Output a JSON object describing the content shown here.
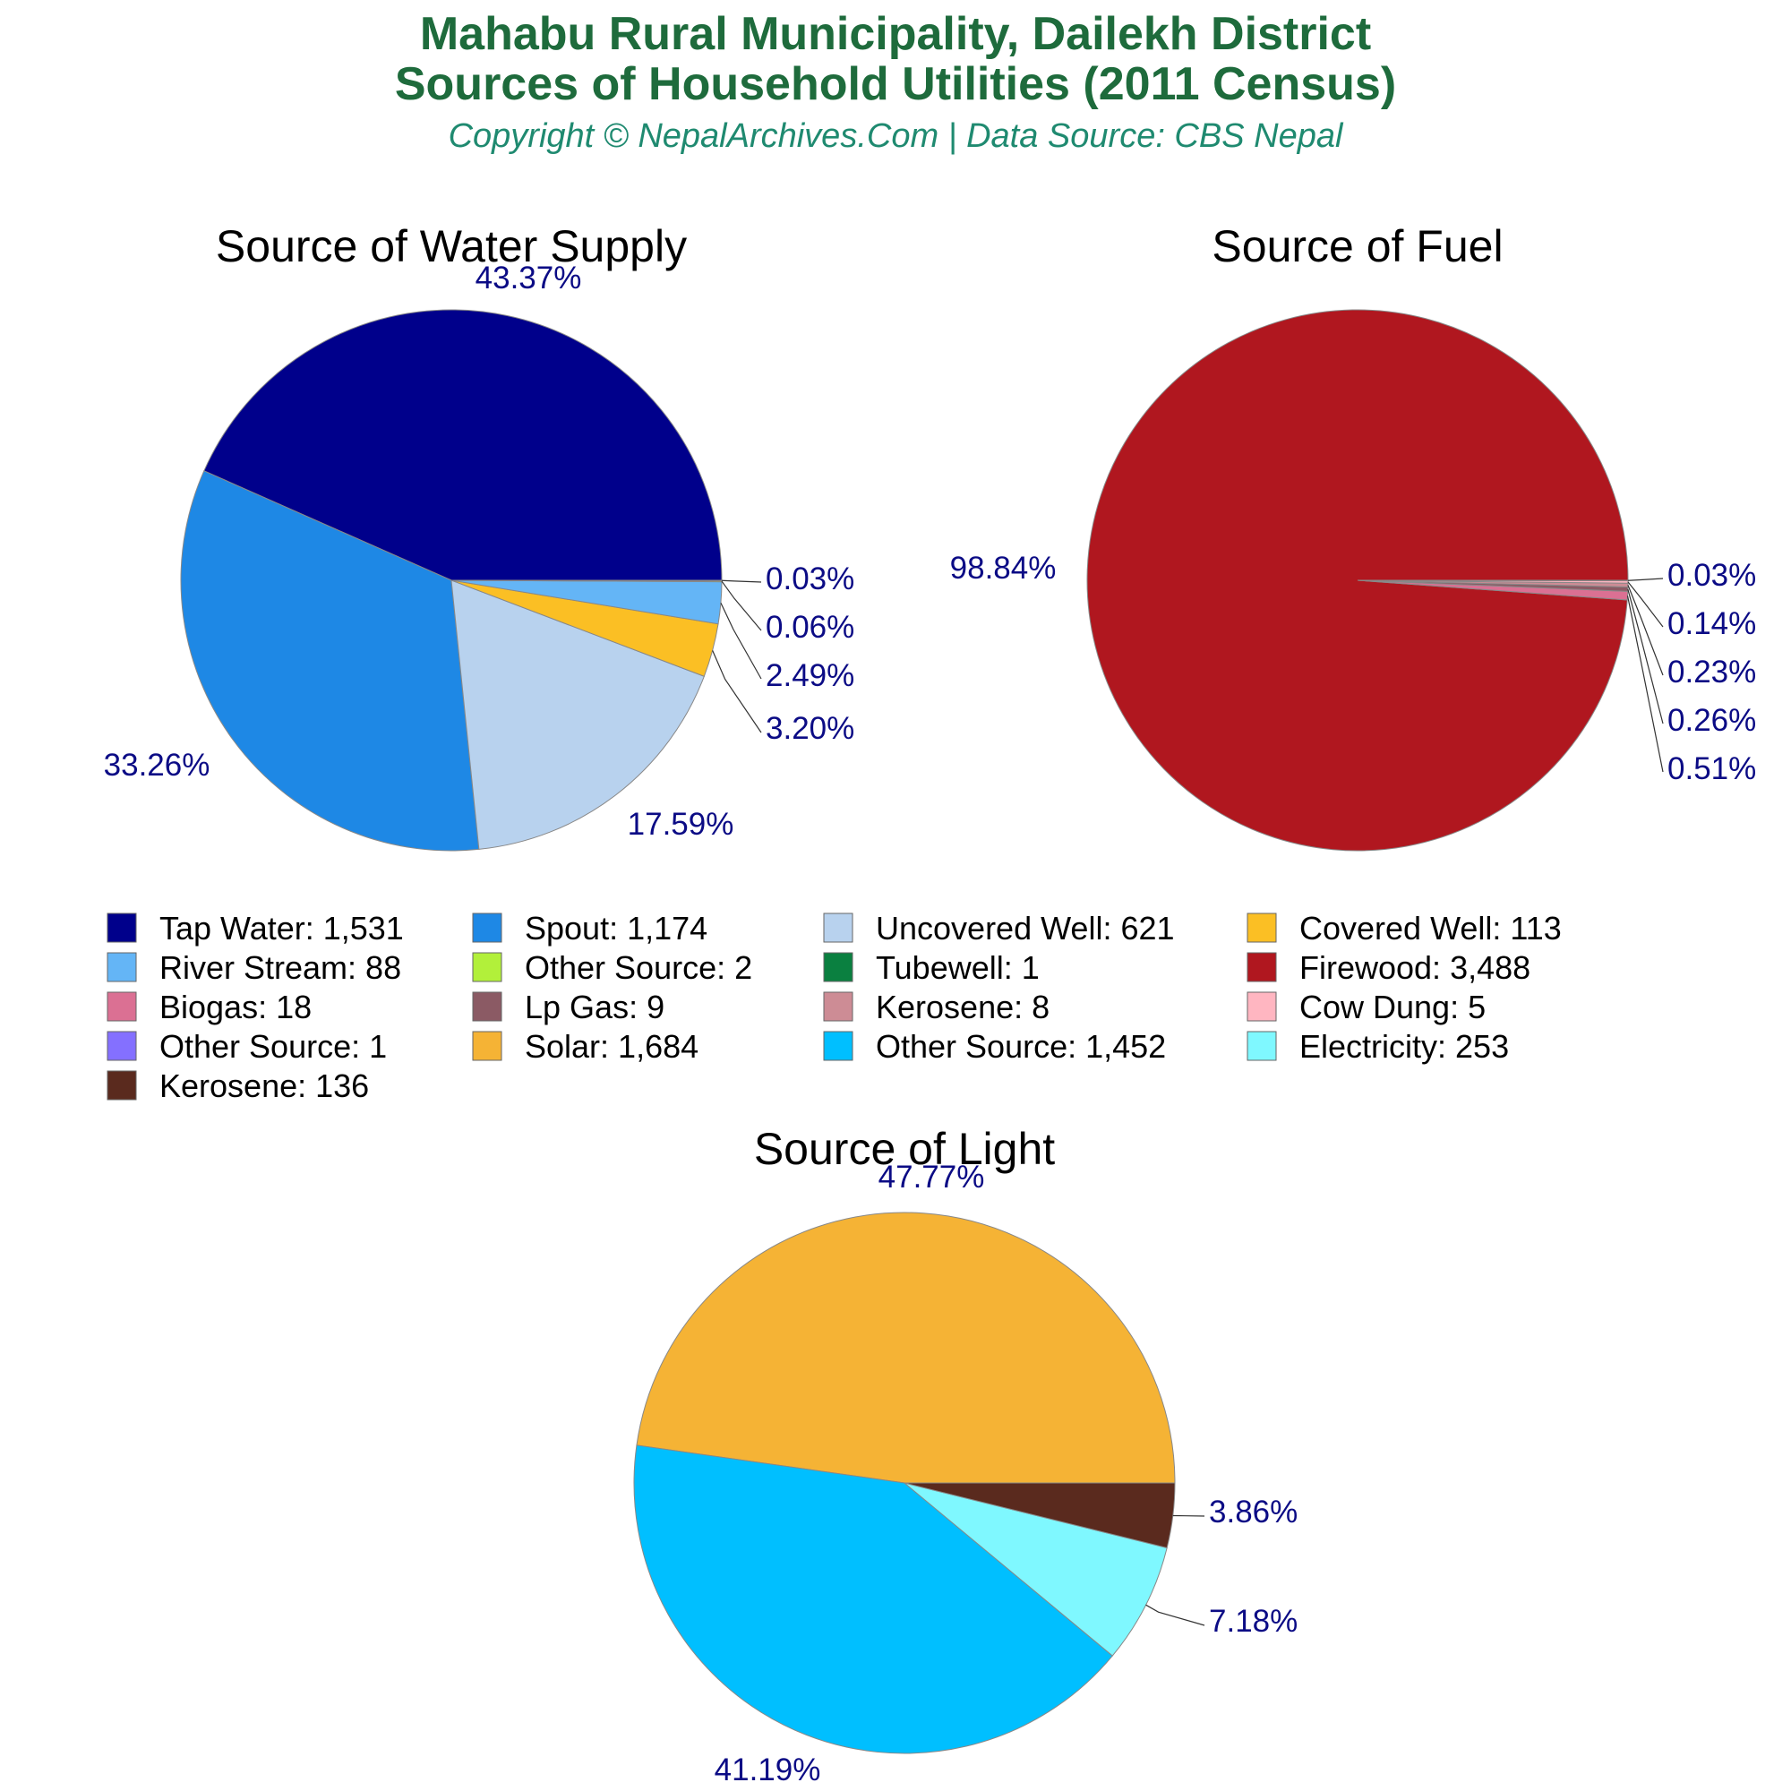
{
  "header": {
    "title_line1": "Mahabu Rural Municipality, Dailekh District",
    "title_line2": "Sources of Household Utilities (2011 Census)",
    "copyright": "Copyright © NepalArchives.Com | Data Source: CBS Nepal"
  },
  "chart_data": [
    {
      "type": "pie",
      "title": "Source of Water Supply",
      "slices": [
        {
          "label": "Tap Water",
          "value": 1531,
          "pct_label": "43.37%",
          "color": "#00008b"
        },
        {
          "label": "Spout",
          "value": 1174,
          "pct_label": "33.26%",
          "color": "#1e88e5"
        },
        {
          "label": "Uncovered Well",
          "value": 621,
          "pct_label": "17.59%",
          "color": "#b8d2ee"
        },
        {
          "label": "Covered Well",
          "value": 113,
          "pct_label": "3.20%",
          "color": "#fbbf24"
        },
        {
          "label": "River Stream",
          "value": 88,
          "pct_label": "2.49%",
          "color": "#64b5f6"
        },
        {
          "label": "Other Source",
          "value": 2,
          "pct_label": "0.06%",
          "color": "#b2f03a"
        },
        {
          "label": "Tubewell",
          "value": 1,
          "pct_label": "0.03%",
          "color": "#0a8040"
        }
      ]
    },
    {
      "type": "pie",
      "title": "Source of Fuel",
      "slices": [
        {
          "label": "Firewood",
          "value": 3488,
          "pct_label": "98.84%",
          "color": "#b0171f"
        },
        {
          "label": "Biogas",
          "value": 18,
          "pct_label": "0.51%",
          "color": "#db7093"
        },
        {
          "label": "Lp Gas",
          "value": 9,
          "pct_label": "0.26%",
          "color": "#8b5a64"
        },
        {
          "label": "Kerosene",
          "value": 8,
          "pct_label": "0.23%",
          "color": "#cd8c95"
        },
        {
          "label": "Cow Dung",
          "value": 5,
          "pct_label": "0.14%",
          "color": "#ffb6c1"
        },
        {
          "label": "Other Source",
          "value": 1,
          "pct_label": "0.03%",
          "color": "#8470ff"
        }
      ]
    },
    {
      "type": "pie",
      "title": "Source of Light",
      "slices": [
        {
          "label": "Solar",
          "value": 1684,
          "pct_label": "47.77%",
          "color": "#f5b335"
        },
        {
          "label": "Other Source",
          "value": 1452,
          "pct_label": "41.19%",
          "color": "#00bfff"
        },
        {
          "label": "Electricity",
          "value": 253,
          "pct_label": "7.18%",
          "color": "#7ff8ff"
        },
        {
          "label": "Kerosene",
          "value": 136,
          "pct_label": "3.86%",
          "color": "#5a2a1e"
        }
      ]
    }
  ],
  "legend": [
    {
      "text": "Tap Water: 1,531",
      "color": "#00008b"
    },
    {
      "text": "Spout: 1,174",
      "color": "#1e88e5"
    },
    {
      "text": "Uncovered Well: 621",
      "color": "#b8d2ee"
    },
    {
      "text": "Covered Well: 113",
      "color": "#fbbf24"
    },
    {
      "text": "River Stream: 88",
      "color": "#64b5f6"
    },
    {
      "text": "Other Source: 2",
      "color": "#b2f03a"
    },
    {
      "text": "Tubewell: 1",
      "color": "#0a8040"
    },
    {
      "text": "Firewood: 3,488",
      "color": "#b0171f"
    },
    {
      "text": "Biogas: 18",
      "color": "#db7093"
    },
    {
      "text": "Lp Gas: 9",
      "color": "#8b5a64"
    },
    {
      "text": "Kerosene: 8",
      "color": "#cd8c95"
    },
    {
      "text": "Cow Dung: 5",
      "color": "#ffb6c1"
    },
    {
      "text": "Other Source: 1",
      "color": "#8470ff"
    },
    {
      "text": "Solar: 1,684",
      "color": "#f5b335"
    },
    {
      "text": "Other Source: 1,452",
      "color": "#00bfff"
    },
    {
      "text": "Electricity: 253",
      "color": "#7ff8ff"
    },
    {
      "text": "Kerosene: 136",
      "color": "#5a2a1e"
    }
  ]
}
